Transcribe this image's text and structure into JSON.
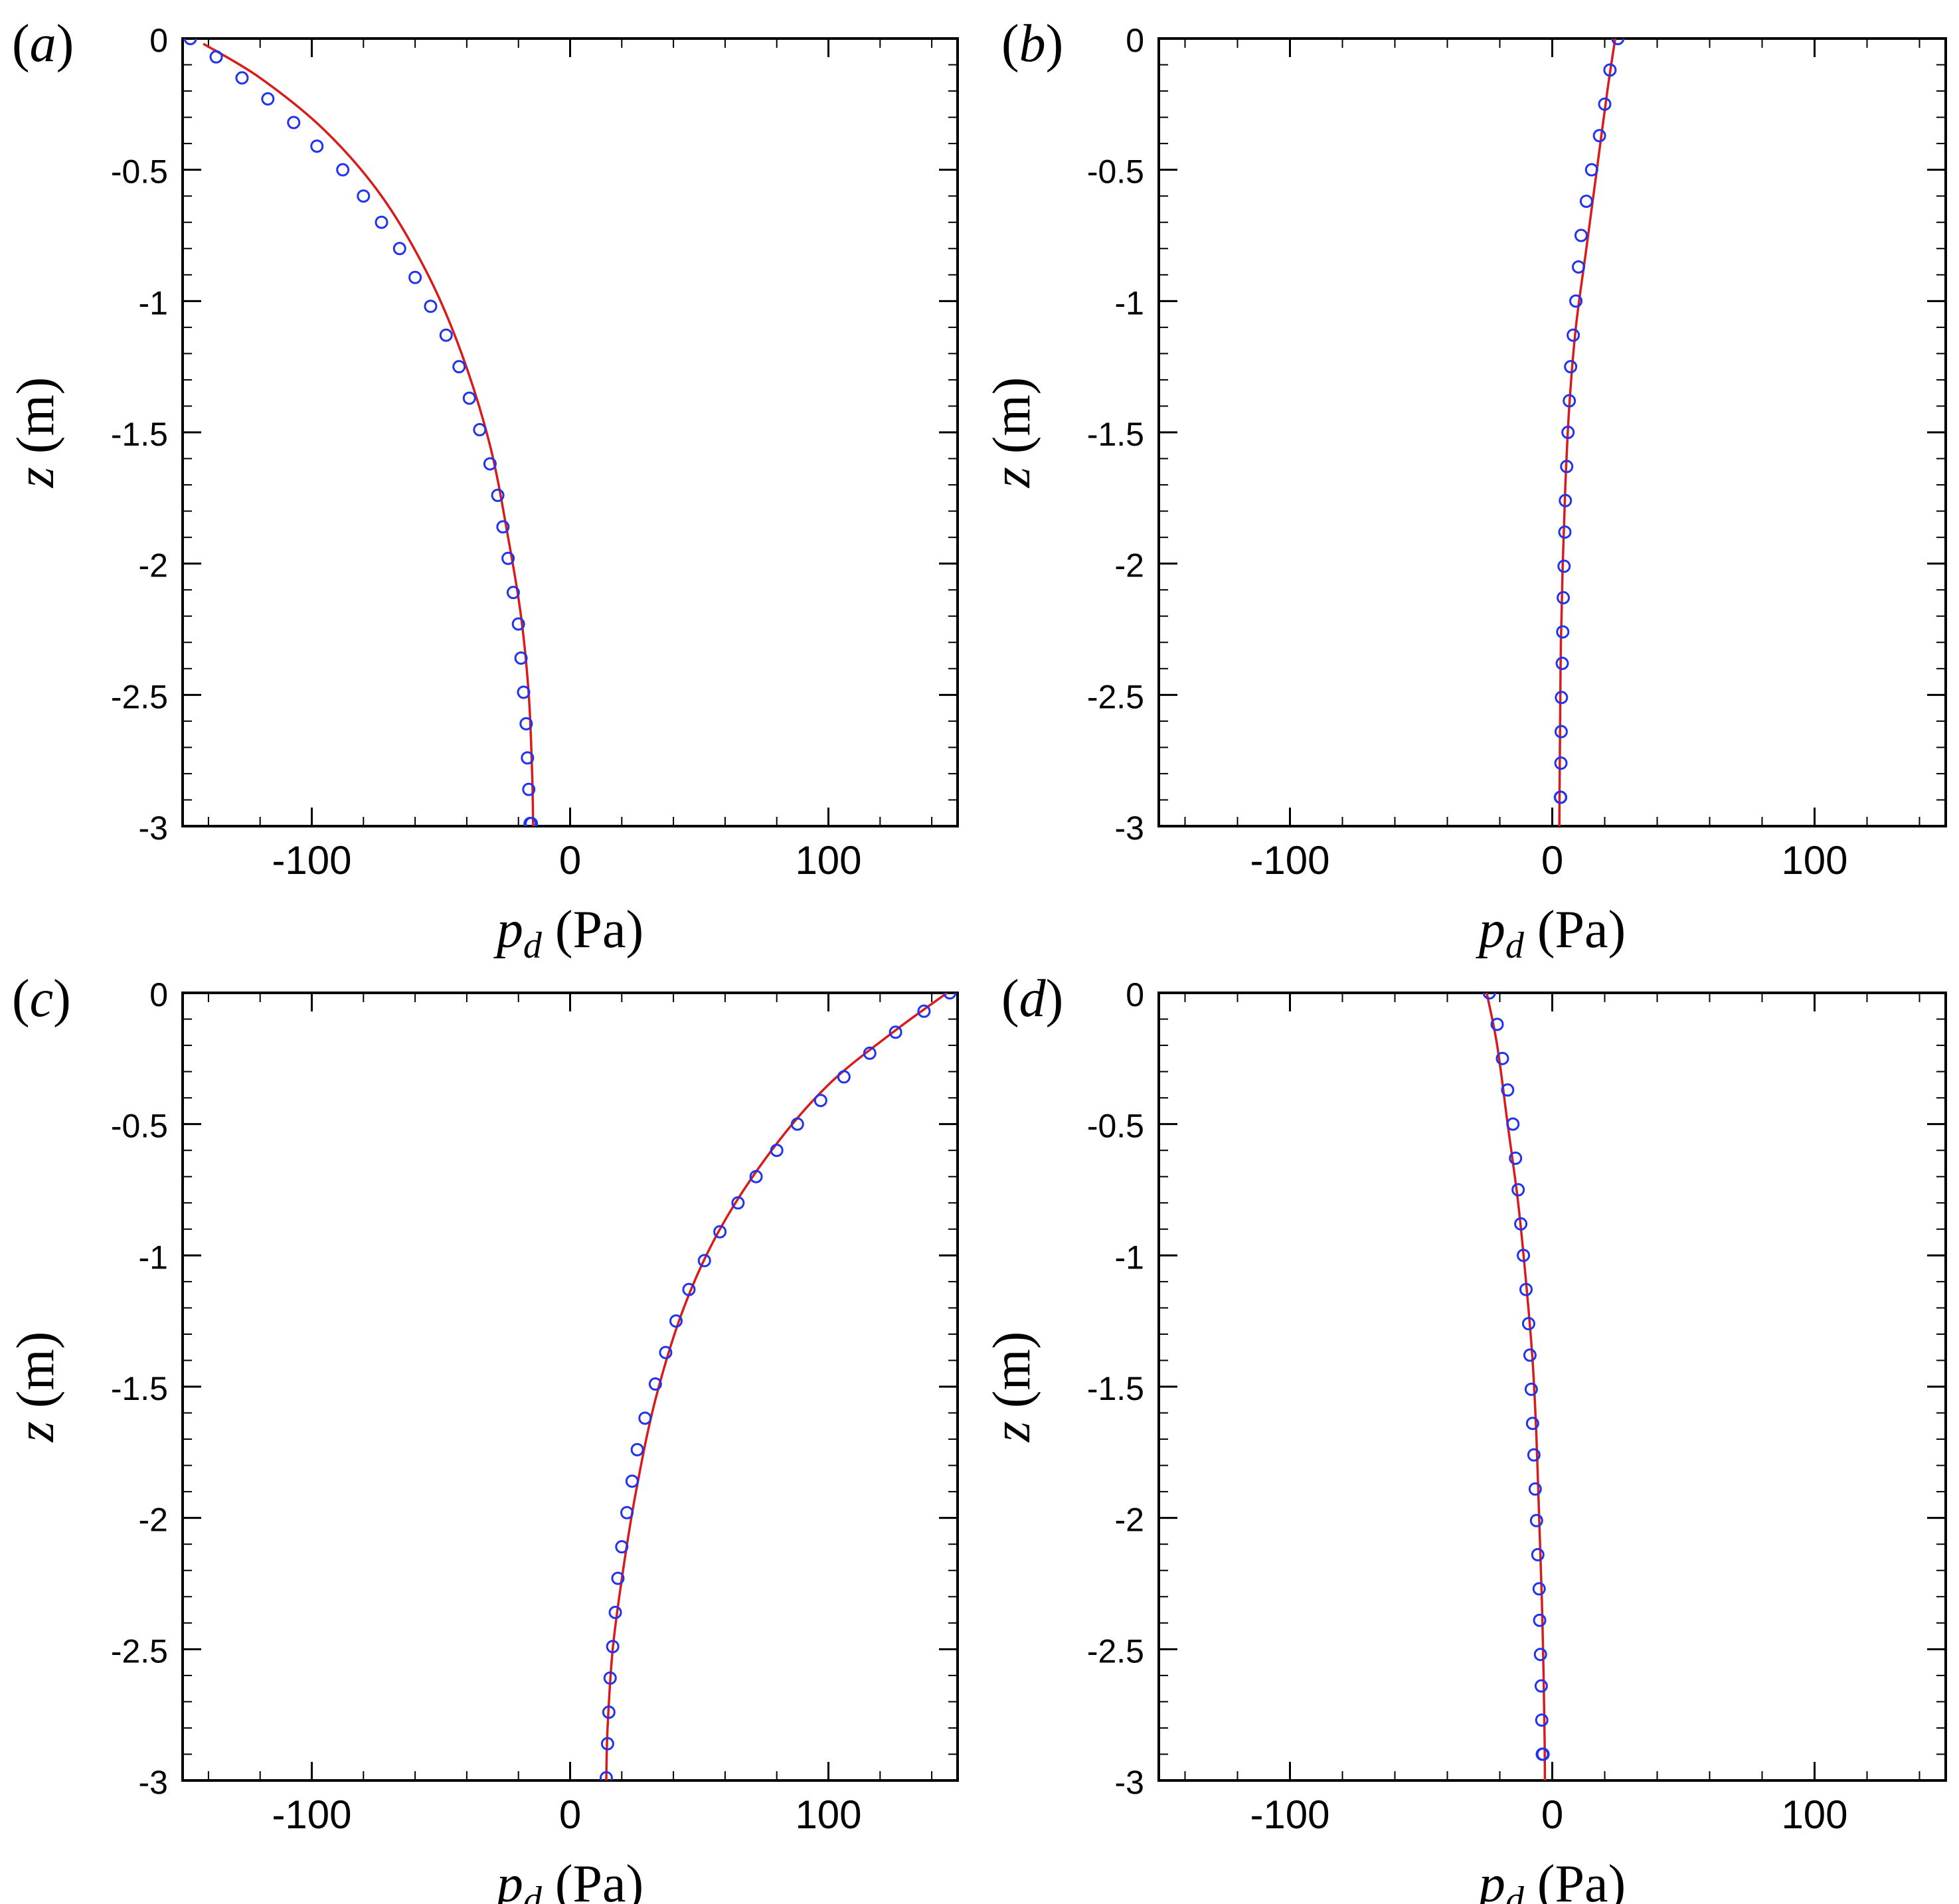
{
  "figure": {
    "colors": {
      "line": "#d81b1b",
      "marker": "#2233ee",
      "axis": "#000000"
    },
    "xaxis": {
      "label_main": "p",
      "label_sub": "d",
      "label_unit": " (Pa)",
      "ticks": [
        -100,
        0,
        100
      ],
      "tick_labels": [
        "-100",
        "0",
        "100"
      ],
      "range": [
        -150,
        150
      ],
      "minor_step": 20
    },
    "yaxis": {
      "label_main": "z",
      "label_unit": " (m)",
      "ticks": [
        0,
        -0.5,
        -1,
        -1.5,
        -2,
        -2.5,
        -3
      ],
      "tick_labels": [
        "0",
        "-0.5",
        "-1",
        "-1.5",
        "-2",
        "-2.5",
        "-3"
      ],
      "range": [
        -3,
        0
      ],
      "minor_step": 0.1
    }
  },
  "chart_data": [
    {
      "type": "line",
      "panel": "a",
      "tag_letter": "a",
      "series": [
        {
          "style": "line",
          "color": "#d81b1b",
          "x": [
            -142,
            -120,
            -95,
            -73,
            -55,
            -42,
            -31,
            -24,
            -19,
            -16,
            -14.7,
            -14.3
          ],
          "y": [
            -0.02,
            -0.15,
            -0.35,
            -0.6,
            -0.9,
            -1.2,
            -1.55,
            -1.9,
            -2.2,
            -2.5,
            -2.8,
            -3.0
          ]
        },
        {
          "style": "marker",
          "color": "#2233ee",
          "x": [
            -147,
            -137,
            -127,
            -117,
            -107,
            -98,
            -88,
            -80,
            -73,
            -66,
            -60,
            -54,
            -48,
            -43,
            -39,
            -35,
            -31,
            -28,
            -26,
            -24,
            -22,
            -20,
            -19,
            -18,
            -17,
            -16.5,
            -16,
            -15.5,
            -15
          ],
          "y": [
            0,
            -0.07,
            -0.15,
            -0.23,
            -0.32,
            -0.41,
            -0.5,
            -0.6,
            -0.7,
            -0.8,
            -0.91,
            -1.02,
            -1.13,
            -1.25,
            -1.37,
            -1.49,
            -1.62,
            -1.74,
            -1.86,
            -1.98,
            -2.11,
            -2.23,
            -2.36,
            -2.49,
            -2.61,
            -2.74,
            -2.86,
            -2.99,
            -2.99
          ]
        }
      ]
    },
    {
      "type": "line",
      "panel": "b",
      "tag_letter": "b",
      "series": [
        {
          "style": "line",
          "color": "#d81b1b",
          "x": [
            24,
            21,
            17,
            13,
            9,
            6.5,
            5,
            4,
            3.3,
            3,
            2.8,
            2.7
          ],
          "y": [
            0,
            -0.2,
            -0.5,
            -0.8,
            -1.1,
            -1.4,
            -1.7,
            -2.0,
            -2.3,
            -2.6,
            -2.85,
            -3.0
          ]
        },
        {
          "style": "marker",
          "color": "#2233ee",
          "x": [
            25,
            22,
            20,
            18,
            15,
            13,
            11,
            10,
            9,
            8,
            7,
            6.5,
            6,
            5.5,
            5,
            4.8,
            4.5,
            4.2,
            4,
            3.8,
            3.5,
            3.4,
            3.3,
            3.2,
            3.1
          ],
          "y": [
            0,
            -0.12,
            -0.25,
            -0.37,
            -0.5,
            -0.62,
            -0.75,
            -0.87,
            -1.0,
            -1.13,
            -1.25,
            -1.38,
            -1.5,
            -1.63,
            -1.76,
            -1.88,
            -2.01,
            -2.13,
            -2.26,
            -2.38,
            -2.51,
            -2.64,
            -2.76,
            -2.89,
            -2.89
          ]
        }
      ]
    },
    {
      "type": "line",
      "panel": "c",
      "tag_letter": "c",
      "series": [
        {
          "style": "line",
          "color": "#d81b1b",
          "x": [
            146,
            125,
            100,
            78,
            58,
            44,
            33,
            25.5,
            20.5,
            16.5,
            14.5,
            14
          ],
          "y": [
            0,
            -0.15,
            -0.35,
            -0.6,
            -0.9,
            -1.2,
            -1.55,
            -1.9,
            -2.2,
            -2.5,
            -2.8,
            -3.0
          ]
        },
        {
          "style": "marker",
          "color": "#2233ee",
          "x": [
            147,
            137,
            126,
            116,
            106,
            97,
            88,
            80,
            72,
            65,
            58,
            52,
            46,
            41,
            37,
            33,
            29,
            26,
            24,
            22,
            20,
            18.5,
            17.5,
            16.5,
            15.5,
            15,
            14.5,
            14
          ],
          "y": [
            0,
            -0.07,
            -0.15,
            -0.23,
            -0.32,
            -0.41,
            -0.5,
            -0.6,
            -0.7,
            -0.8,
            -0.91,
            -1.02,
            -1.13,
            -1.25,
            -1.37,
            -1.49,
            -1.62,
            -1.74,
            -1.86,
            -1.98,
            -2.11,
            -2.23,
            -2.36,
            -2.49,
            -2.61,
            -2.74,
            -2.86,
            -2.99
          ]
        }
      ]
    },
    {
      "type": "line",
      "panel": "d",
      "tag_letter": "d",
      "series": [
        {
          "style": "line",
          "color": "#d81b1b",
          "x": [
            -25,
            -21,
            -17,
            -13,
            -10,
            -7.5,
            -6,
            -5,
            -4,
            -3.3,
            -2.9,
            -2.8
          ],
          "y": [
            0,
            -0.2,
            -0.5,
            -0.8,
            -1.1,
            -1.4,
            -1.7,
            -2.0,
            -2.3,
            -2.6,
            -2.85,
            -3.0
          ]
        },
        {
          "style": "marker",
          "color": "#2233ee",
          "x": [
            -24,
            -21,
            -19,
            -17,
            -15,
            -14,
            -13,
            -12,
            -11,
            -10,
            -9,
            -8.5,
            -8,
            -7.5,
            -7,
            -6.5,
            -6,
            -5.5,
            -5,
            -4.8,
            -4.5,
            -4.2,
            -4,
            -3.8,
            -3.5
          ],
          "y": [
            0,
            -0.12,
            -0.25,
            -0.37,
            -0.5,
            -0.63,
            -0.75,
            -0.88,
            -1.0,
            -1.13,
            -1.26,
            -1.38,
            -1.51,
            -1.64,
            -1.76,
            -1.89,
            -2.01,
            -2.14,
            -2.27,
            -2.39,
            -2.52,
            -2.64,
            -2.77,
            -2.9,
            -2.9
          ]
        }
      ]
    }
  ]
}
